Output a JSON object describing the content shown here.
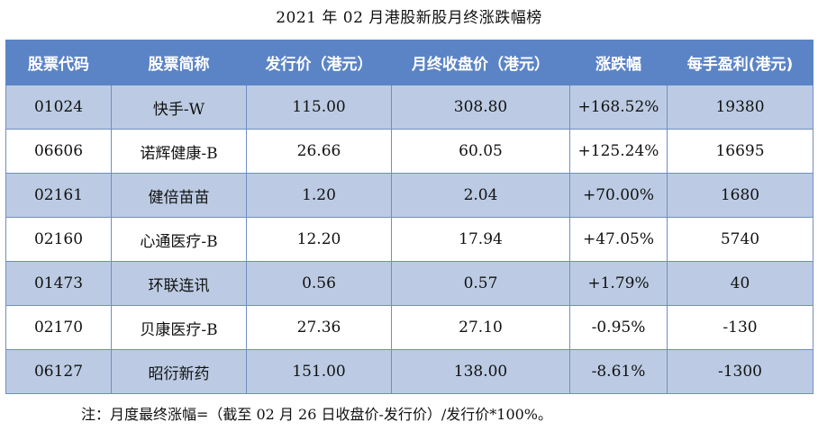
{
  "title": "2021 年 02 月港股新股月终涨跌幅榜",
  "table": {
    "headers": [
      "股票代码",
      "股票简称",
      "发行价（港元）",
      "月终收盘价（港元）",
      "涨跌幅",
      "每手盈利(港元)"
    ],
    "rows": [
      [
        "01024",
        "快手-W",
        "115.00",
        "308.80",
        "+168.52%",
        "19380"
      ],
      [
        "06606",
        "诺辉健康-B",
        "26.66",
        "60.05",
        "+125.24%",
        "16695"
      ],
      [
        "02161",
        "健倍苗苗",
        "1.20",
        "2.04",
        "+70.00%",
        "1680"
      ],
      [
        "02160",
        "心通医疗-B",
        "12.20",
        "17.94",
        "+47.05%",
        "5740"
      ],
      [
        "01473",
        "环联连讯",
        "0.56",
        "0.57",
        "+1.79%",
        "40"
      ],
      [
        "02170",
        "贝康医疗-B",
        "27.36",
        "27.10",
        "-0.95%",
        "-130"
      ],
      [
        "06127",
        "昭衍新药",
        "151.00",
        "138.00",
        "-8.61%",
        "-1300"
      ]
    ]
  },
  "note": "注：月度最终涨幅=（截至 02 月 26 日收盘价-发行价）/发行价*100%。",
  "colors": {
    "header_bg": "#5b84c6",
    "row_band": "#bccbe3",
    "border": "#6f8fc0"
  }
}
